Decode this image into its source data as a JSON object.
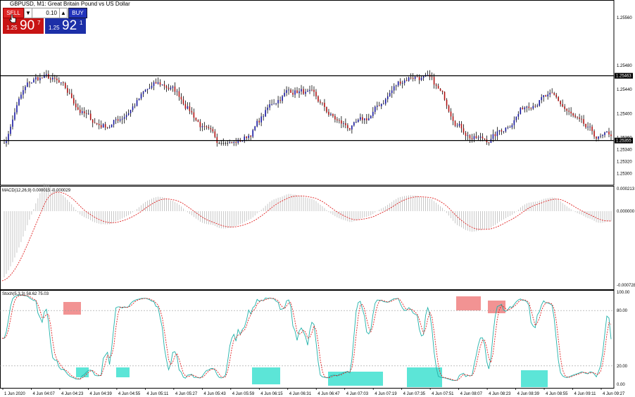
{
  "title": "GBPUSD, M1:  Great Britain Pound vs US Dollar",
  "trade_panel": {
    "sell_label": "SELL",
    "buy_label": "BUY",
    "lot": "0.10",
    "lot_down": "▼",
    "lot_up": "▲",
    "sell_price_prefix": "1.25",
    "sell_price_big": "90",
    "sell_price_sup": "7",
    "buy_price_prefix": "1.25",
    "buy_price_big": "92",
    "buy_price_sup": "1"
  },
  "colors": {
    "up_candle": "#1515a0",
    "down_candle": "#b01010",
    "neutral": "#000000",
    "macd_hist": "#b0b0b0",
    "macd_signal": "#e02020",
    "stoch_main": "#20b2aa",
    "stoch_signal": "#e02020",
    "overbought_box": "#f08080",
    "oversold_box": "#40e0d0"
  },
  "chart_data": [
    {
      "type": "candlestick",
      "symbol": "GBPUSD",
      "timeframe": "M1",
      "ylim": [
        1.2529,
        1.2558
      ],
      "price_ticks": [
        "1.25560",
        "1.25480",
        "1.25440",
        "1.25400",
        "1.25360",
        "1.25340",
        "1.25320",
        "1.25300"
      ],
      "resistance_label": "1.25463",
      "support_label": "1.25355",
      "time_labels": [
        "1 Jun 2020",
        "4 Jun 04:07",
        "4 Jun 04:23",
        "4 Jun 04:39",
        "4 Jun 04:55",
        "4 Jun 05:11",
        "4 Jun 05:27",
        "4 Jun 05:43",
        "4 Jun 05:59",
        "4 Jun 06:15",
        "4 Jun 06:31",
        "4 Jun 06:47",
        "4 Jun 07:03",
        "4 Jun 07:19",
        "4 Jun 07:35",
        "4 Jun 07:51",
        "4 Jun 08:07",
        "4 Jun 08:23",
        "4 Jun 08:39",
        "4 Jun 08:55",
        "4 Jun 09:11",
        "4 Jun 09:27"
      ]
    },
    {
      "type": "line",
      "name": "MACD(12,26,9) 0.000015 -0.000029",
      "ytick_labels": [
        "0.000213",
        "0.000000",
        "-0.000728"
      ]
    },
    {
      "type": "line",
      "name": "Stoch(5,3,3) 58.62 75.03",
      "ylim": [
        0,
        100
      ],
      "ytick_labels": [
        "100.00",
        "80.00",
        "20.00",
        "0.00"
      ],
      "levels": [
        80,
        20
      ]
    }
  ]
}
